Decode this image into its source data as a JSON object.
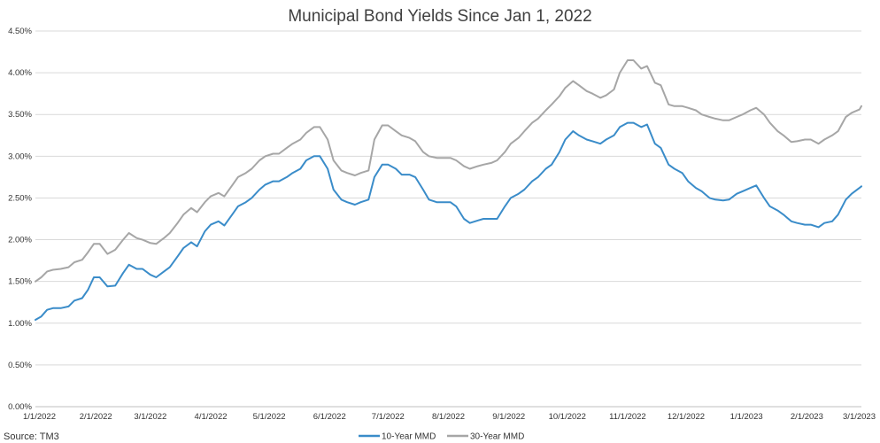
{
  "chart_data": {
    "type": "line",
    "title": "Municipal Bond Yields Since Jan 1, 2022",
    "xlabel": "",
    "ylabel": "",
    "source": "Source: TM3",
    "x_tick_labels": [
      "1/1/2022",
      "2/1/2022",
      "3/1/2022",
      "4/1/2022",
      "5/1/2022",
      "6/1/2022",
      "7/1/2022",
      "8/1/2022",
      "9/1/2022",
      "10/1/2022",
      "11/1/2022",
      "12/1/2022",
      "1/1/2023",
      "2/1/2023",
      "3/1/2023"
    ],
    "x_tick_dates": [
      "2022-01-01",
      "2022-02-01",
      "2022-03-01",
      "2022-04-01",
      "2022-05-01",
      "2022-06-01",
      "2022-07-01",
      "2022-08-01",
      "2022-09-01",
      "2022-10-01",
      "2022-11-01",
      "2022-12-01",
      "2023-01-01",
      "2023-02-01",
      "2023-03-01"
    ],
    "xlim": [
      "2022-01-01",
      "2023-03-01"
    ],
    "y_tick_labels": [
      "0.00%",
      "0.50%",
      "1.00%",
      "1.50%",
      "2.00%",
      "2.50%",
      "3.00%",
      "3.50%",
      "4.00%",
      "4.50%"
    ],
    "y_ticks": [
      0,
      0.5,
      1.0,
      1.5,
      2.0,
      2.5,
      3.0,
      3.5,
      4.0,
      4.5
    ],
    "ylim": [
      0,
      4.5
    ],
    "grid": "horizontal",
    "legend_position": "bottom-center",
    "series": [
      {
        "name": "10-Year MMD",
        "color": "#3A8CC9",
        "points": [
          [
            "2022-01-01",
            1.04
          ],
          [
            "2022-01-04",
            1.08
          ],
          [
            "2022-01-07",
            1.16
          ],
          [
            "2022-01-10",
            1.18
          ],
          [
            "2022-01-14",
            1.18
          ],
          [
            "2022-01-18",
            1.2
          ],
          [
            "2022-01-21",
            1.27
          ],
          [
            "2022-01-25",
            1.3
          ],
          [
            "2022-01-28",
            1.4
          ],
          [
            "2022-01-31",
            1.55
          ],
          [
            "2022-02-03",
            1.55
          ],
          [
            "2022-02-07",
            1.44
          ],
          [
            "2022-02-11",
            1.45
          ],
          [
            "2022-02-15",
            1.6
          ],
          [
            "2022-02-18",
            1.7
          ],
          [
            "2022-02-22",
            1.65
          ],
          [
            "2022-02-25",
            1.65
          ],
          [
            "2022-03-01",
            1.58
          ],
          [
            "2022-03-04",
            1.55
          ],
          [
            "2022-03-08",
            1.62
          ],
          [
            "2022-03-11",
            1.67
          ],
          [
            "2022-03-15",
            1.8
          ],
          [
            "2022-03-18",
            1.9
          ],
          [
            "2022-03-22",
            1.97
          ],
          [
            "2022-03-25",
            1.92
          ],
          [
            "2022-03-29",
            2.1
          ],
          [
            "2022-04-01",
            2.18
          ],
          [
            "2022-04-05",
            2.22
          ],
          [
            "2022-04-08",
            2.17
          ],
          [
            "2022-04-12",
            2.3
          ],
          [
            "2022-04-15",
            2.4
          ],
          [
            "2022-04-19",
            2.45
          ],
          [
            "2022-04-22",
            2.5
          ],
          [
            "2022-04-26",
            2.6
          ],
          [
            "2022-04-29",
            2.66
          ],
          [
            "2022-05-03",
            2.7
          ],
          [
            "2022-05-06",
            2.7
          ],
          [
            "2022-05-10",
            2.75
          ],
          [
            "2022-05-13",
            2.8
          ],
          [
            "2022-05-17",
            2.85
          ],
          [
            "2022-05-20",
            2.95
          ],
          [
            "2022-05-24",
            3.0
          ],
          [
            "2022-05-27",
            3.0
          ],
          [
            "2022-05-31",
            2.85
          ],
          [
            "2022-06-03",
            2.6
          ],
          [
            "2022-06-07",
            2.48
          ],
          [
            "2022-06-10",
            2.45
          ],
          [
            "2022-06-14",
            2.42
          ],
          [
            "2022-06-17",
            2.45
          ],
          [
            "2022-06-21",
            2.48
          ],
          [
            "2022-06-24",
            2.75
          ],
          [
            "2022-06-28",
            2.9
          ],
          [
            "2022-07-01",
            2.9
          ],
          [
            "2022-07-05",
            2.85
          ],
          [
            "2022-07-08",
            2.78
          ],
          [
            "2022-07-12",
            2.78
          ],
          [
            "2022-07-15",
            2.75
          ],
          [
            "2022-07-19",
            2.6
          ],
          [
            "2022-07-22",
            2.48
          ],
          [
            "2022-07-26",
            2.45
          ],
          [
            "2022-07-29",
            2.45
          ],
          [
            "2022-08-02",
            2.45
          ],
          [
            "2022-08-05",
            2.4
          ],
          [
            "2022-08-09",
            2.25
          ],
          [
            "2022-08-12",
            2.2
          ],
          [
            "2022-08-16",
            2.23
          ],
          [
            "2022-08-19",
            2.25
          ],
          [
            "2022-08-23",
            2.25
          ],
          [
            "2022-08-26",
            2.25
          ],
          [
            "2022-08-30",
            2.4
          ],
          [
            "2022-09-02",
            2.5
          ],
          [
            "2022-09-06",
            2.55
          ],
          [
            "2022-09-09",
            2.6
          ],
          [
            "2022-09-13",
            2.7
          ],
          [
            "2022-09-16",
            2.75
          ],
          [
            "2022-09-20",
            2.85
          ],
          [
            "2022-09-23",
            2.9
          ],
          [
            "2022-09-27",
            3.05
          ],
          [
            "2022-09-30",
            3.2
          ],
          [
            "2022-10-04",
            3.3
          ],
          [
            "2022-10-07",
            3.25
          ],
          [
            "2022-10-11",
            3.2
          ],
          [
            "2022-10-14",
            3.18
          ],
          [
            "2022-10-18",
            3.15
          ],
          [
            "2022-10-21",
            3.2
          ],
          [
            "2022-10-25",
            3.25
          ],
          [
            "2022-10-28",
            3.35
          ],
          [
            "2022-11-01",
            3.4
          ],
          [
            "2022-11-04",
            3.4
          ],
          [
            "2022-11-08",
            3.35
          ],
          [
            "2022-11-11",
            3.38
          ],
          [
            "2022-11-15",
            3.15
          ],
          [
            "2022-11-18",
            3.1
          ],
          [
            "2022-11-22",
            2.9
          ],
          [
            "2022-11-25",
            2.85
          ],
          [
            "2022-11-29",
            2.8
          ],
          [
            "2022-12-02",
            2.7
          ],
          [
            "2022-12-06",
            2.62
          ],
          [
            "2022-12-09",
            2.58
          ],
          [
            "2022-12-13",
            2.5
          ],
          [
            "2022-12-16",
            2.48
          ],
          [
            "2022-12-20",
            2.47
          ],
          [
            "2022-12-23",
            2.48
          ],
          [
            "2022-12-27",
            2.55
          ],
          [
            "2022-12-30",
            2.58
          ],
          [
            "2023-01-03",
            2.62
          ],
          [
            "2023-01-06",
            2.65
          ],
          [
            "2023-01-10",
            2.5
          ],
          [
            "2023-01-13",
            2.4
          ],
          [
            "2023-01-17",
            2.35
          ],
          [
            "2023-01-20",
            2.3
          ],
          [
            "2023-01-24",
            2.22
          ],
          [
            "2023-01-27",
            2.2
          ],
          [
            "2023-01-31",
            2.18
          ],
          [
            "2023-02-03",
            2.18
          ],
          [
            "2023-02-07",
            2.15
          ],
          [
            "2023-02-10",
            2.2
          ],
          [
            "2023-02-14",
            2.22
          ],
          [
            "2023-02-17",
            2.3
          ],
          [
            "2023-02-21",
            2.48
          ],
          [
            "2023-02-24",
            2.55
          ],
          [
            "2023-02-28",
            2.62
          ],
          [
            "2023-03-01",
            2.64
          ]
        ]
      },
      {
        "name": "30-Year MMD",
        "color": "#A6A6A6",
        "points": [
          [
            "2022-01-01",
            1.5
          ],
          [
            "2022-01-04",
            1.55
          ],
          [
            "2022-01-07",
            1.62
          ],
          [
            "2022-01-10",
            1.64
          ],
          [
            "2022-01-14",
            1.65
          ],
          [
            "2022-01-18",
            1.67
          ],
          [
            "2022-01-21",
            1.73
          ],
          [
            "2022-01-25",
            1.76
          ],
          [
            "2022-01-28",
            1.85
          ],
          [
            "2022-01-31",
            1.95
          ],
          [
            "2022-02-03",
            1.95
          ],
          [
            "2022-02-07",
            1.83
          ],
          [
            "2022-02-11",
            1.88
          ],
          [
            "2022-02-15",
            2.0
          ],
          [
            "2022-02-18",
            2.08
          ],
          [
            "2022-02-22",
            2.02
          ],
          [
            "2022-02-25",
            2.0
          ],
          [
            "2022-03-01",
            1.96
          ],
          [
            "2022-03-04",
            1.95
          ],
          [
            "2022-03-08",
            2.02
          ],
          [
            "2022-03-11",
            2.08
          ],
          [
            "2022-03-15",
            2.2
          ],
          [
            "2022-03-18",
            2.3
          ],
          [
            "2022-03-22",
            2.38
          ],
          [
            "2022-03-25",
            2.33
          ],
          [
            "2022-03-29",
            2.45
          ],
          [
            "2022-04-01",
            2.52
          ],
          [
            "2022-04-05",
            2.56
          ],
          [
            "2022-04-08",
            2.52
          ],
          [
            "2022-04-12",
            2.65
          ],
          [
            "2022-04-15",
            2.75
          ],
          [
            "2022-04-19",
            2.8
          ],
          [
            "2022-04-22",
            2.85
          ],
          [
            "2022-04-26",
            2.95
          ],
          [
            "2022-04-29",
            3.0
          ],
          [
            "2022-05-03",
            3.03
          ],
          [
            "2022-05-06",
            3.03
          ],
          [
            "2022-05-10",
            3.1
          ],
          [
            "2022-05-13",
            3.15
          ],
          [
            "2022-05-17",
            3.2
          ],
          [
            "2022-05-20",
            3.28
          ],
          [
            "2022-05-24",
            3.35
          ],
          [
            "2022-05-27",
            3.35
          ],
          [
            "2022-05-31",
            3.2
          ],
          [
            "2022-06-03",
            2.95
          ],
          [
            "2022-06-07",
            2.83
          ],
          [
            "2022-06-10",
            2.8
          ],
          [
            "2022-06-14",
            2.77
          ],
          [
            "2022-06-17",
            2.8
          ],
          [
            "2022-06-21",
            2.83
          ],
          [
            "2022-06-24",
            3.2
          ],
          [
            "2022-06-28",
            3.37
          ],
          [
            "2022-07-01",
            3.37
          ],
          [
            "2022-07-05",
            3.3
          ],
          [
            "2022-07-08",
            3.25
          ],
          [
            "2022-07-12",
            3.22
          ],
          [
            "2022-07-15",
            3.18
          ],
          [
            "2022-07-19",
            3.05
          ],
          [
            "2022-07-22",
            3.0
          ],
          [
            "2022-07-26",
            2.98
          ],
          [
            "2022-07-29",
            2.98
          ],
          [
            "2022-08-02",
            2.98
          ],
          [
            "2022-08-05",
            2.95
          ],
          [
            "2022-08-09",
            2.88
          ],
          [
            "2022-08-12",
            2.85
          ],
          [
            "2022-08-16",
            2.88
          ],
          [
            "2022-08-19",
            2.9
          ],
          [
            "2022-08-23",
            2.92
          ],
          [
            "2022-08-26",
            2.95
          ],
          [
            "2022-08-30",
            3.05
          ],
          [
            "2022-09-02",
            3.15
          ],
          [
            "2022-09-06",
            3.22
          ],
          [
            "2022-09-09",
            3.3
          ],
          [
            "2022-09-13",
            3.4
          ],
          [
            "2022-09-16",
            3.45
          ],
          [
            "2022-09-20",
            3.55
          ],
          [
            "2022-09-23",
            3.62
          ],
          [
            "2022-09-27",
            3.72
          ],
          [
            "2022-09-30",
            3.82
          ],
          [
            "2022-10-04",
            3.9
          ],
          [
            "2022-10-07",
            3.85
          ],
          [
            "2022-10-11",
            3.78
          ],
          [
            "2022-10-14",
            3.75
          ],
          [
            "2022-10-18",
            3.7
          ],
          [
            "2022-10-21",
            3.73
          ],
          [
            "2022-10-25",
            3.8
          ],
          [
            "2022-10-28",
            4.0
          ],
          [
            "2022-11-01",
            4.15
          ],
          [
            "2022-11-04",
            4.15
          ],
          [
            "2022-11-08",
            4.05
          ],
          [
            "2022-11-11",
            4.08
          ],
          [
            "2022-11-15",
            3.88
          ],
          [
            "2022-11-18",
            3.85
          ],
          [
            "2022-11-22",
            3.62
          ],
          [
            "2022-11-25",
            3.6
          ],
          [
            "2022-11-29",
            3.6
          ],
          [
            "2022-12-02",
            3.58
          ],
          [
            "2022-12-06",
            3.55
          ],
          [
            "2022-12-09",
            3.5
          ],
          [
            "2022-12-13",
            3.47
          ],
          [
            "2022-12-16",
            3.45
          ],
          [
            "2022-12-20",
            3.43
          ],
          [
            "2022-12-23",
            3.43
          ],
          [
            "2022-12-27",
            3.47
          ],
          [
            "2022-12-30",
            3.5
          ],
          [
            "2023-01-03",
            3.55
          ],
          [
            "2023-01-06",
            3.58
          ],
          [
            "2023-01-10",
            3.5
          ],
          [
            "2023-01-13",
            3.4
          ],
          [
            "2023-01-17",
            3.3
          ],
          [
            "2023-01-20",
            3.25
          ],
          [
            "2023-01-24",
            3.17
          ],
          [
            "2023-01-27",
            3.18
          ],
          [
            "2023-01-31",
            3.2
          ],
          [
            "2023-02-03",
            3.2
          ],
          [
            "2023-02-07",
            3.15
          ],
          [
            "2023-02-10",
            3.2
          ],
          [
            "2023-02-14",
            3.25
          ],
          [
            "2023-02-17",
            3.3
          ],
          [
            "2023-02-21",
            3.47
          ],
          [
            "2023-02-24",
            3.52
          ],
          [
            "2023-02-28",
            3.56
          ],
          [
            "2023-03-01",
            3.6
          ]
        ]
      }
    ]
  }
}
